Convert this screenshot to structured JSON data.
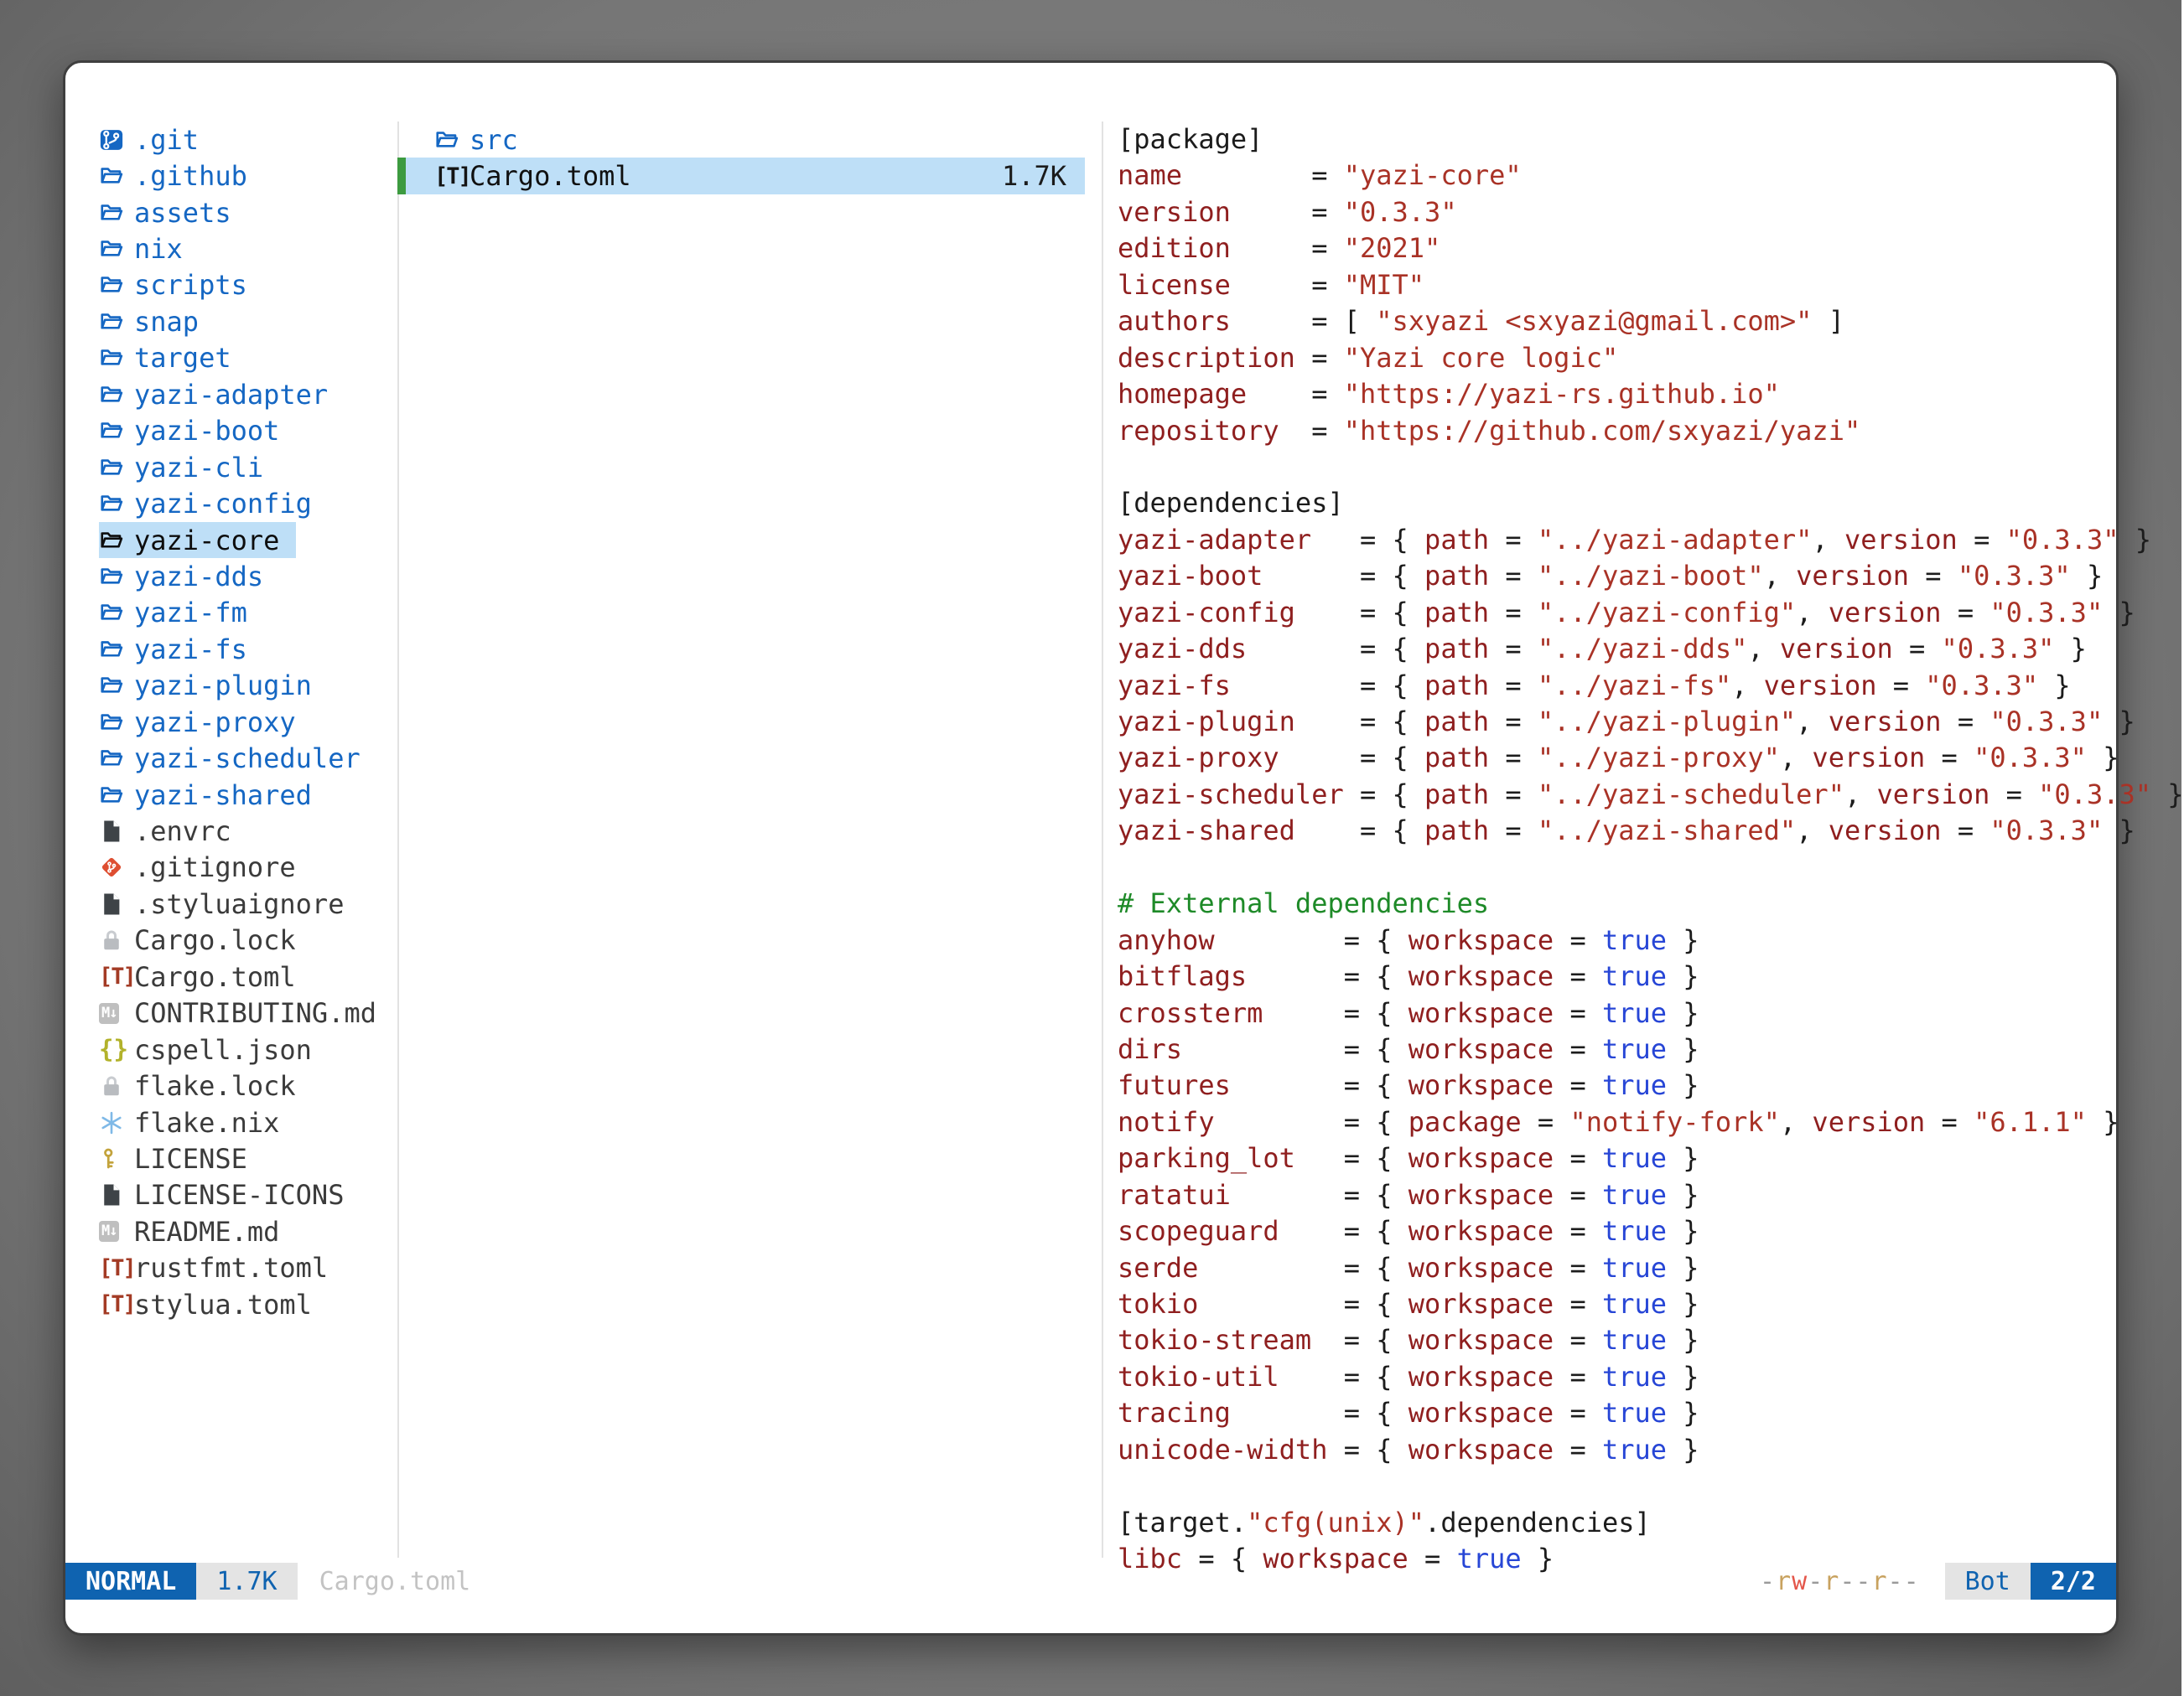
{
  "sidebar": {
    "items": [
      {
        "label": ".git",
        "icon": "git-repo",
        "kind": "folder"
      },
      {
        "label": ".github",
        "icon": "folder",
        "kind": "folder"
      },
      {
        "label": "assets",
        "icon": "folder",
        "kind": "folder"
      },
      {
        "label": "nix",
        "icon": "folder",
        "kind": "folder"
      },
      {
        "label": "scripts",
        "icon": "folder",
        "kind": "folder"
      },
      {
        "label": "snap",
        "icon": "folder",
        "kind": "folder"
      },
      {
        "label": "target",
        "icon": "folder",
        "kind": "folder"
      },
      {
        "label": "yazi-adapter",
        "icon": "folder",
        "kind": "folder"
      },
      {
        "label": "yazi-boot",
        "icon": "folder",
        "kind": "folder"
      },
      {
        "label": "yazi-cli",
        "icon": "folder",
        "kind": "folder"
      },
      {
        "label": "yazi-config",
        "icon": "folder",
        "kind": "folder"
      },
      {
        "label": "yazi-core",
        "icon": "folder",
        "kind": "folder",
        "selected": true
      },
      {
        "label": "yazi-dds",
        "icon": "folder",
        "kind": "folder"
      },
      {
        "label": "yazi-fm",
        "icon": "folder",
        "kind": "folder"
      },
      {
        "label": "yazi-fs",
        "icon": "folder",
        "kind": "folder"
      },
      {
        "label": "yazi-plugin",
        "icon": "folder",
        "kind": "folder"
      },
      {
        "label": "yazi-proxy",
        "icon": "folder",
        "kind": "folder"
      },
      {
        "label": "yazi-scheduler",
        "icon": "folder",
        "kind": "folder"
      },
      {
        "label": "yazi-shared",
        "icon": "folder",
        "kind": "folder"
      },
      {
        "label": ".envrc",
        "icon": "file",
        "kind": "file"
      },
      {
        "label": ".gitignore",
        "icon": "git",
        "kind": "file"
      },
      {
        "label": ".styluaignore",
        "icon": "file",
        "kind": "file"
      },
      {
        "label": "Cargo.lock",
        "icon": "lock",
        "kind": "file"
      },
      {
        "label": "Cargo.toml",
        "icon": "toml",
        "kind": "file"
      },
      {
        "label": "CONTRIBUTING.md",
        "icon": "markdown",
        "kind": "file"
      },
      {
        "label": "cspell.json",
        "icon": "json",
        "kind": "file"
      },
      {
        "label": "flake.lock",
        "icon": "lock",
        "kind": "file"
      },
      {
        "label": "flake.nix",
        "icon": "nix",
        "kind": "file"
      },
      {
        "label": "LICENSE",
        "icon": "key",
        "kind": "file"
      },
      {
        "label": "LICENSE-ICONS",
        "icon": "file",
        "kind": "file"
      },
      {
        "label": "README.md",
        "icon": "markdown",
        "kind": "file"
      },
      {
        "label": "rustfmt.toml",
        "icon": "toml",
        "kind": "file"
      },
      {
        "label": "stylua.toml",
        "icon": "toml",
        "kind": "file"
      }
    ]
  },
  "filelist": {
    "items": [
      {
        "label": "src",
        "icon": "folder",
        "kind": "folder"
      },
      {
        "label": "Cargo.toml",
        "icon": "toml",
        "kind": "file",
        "size": "1.7K",
        "selected": true
      }
    ]
  },
  "preview": {
    "lines": [
      [
        [
          "h",
          "[package]"
        ]
      ],
      [
        [
          "k",
          "name"
        ],
        [
          "p",
          "        = "
        ],
        [
          "s",
          "\"yazi-core\""
        ]
      ],
      [
        [
          "k",
          "version"
        ],
        [
          "p",
          "     = "
        ],
        [
          "s",
          "\"0.3.3\""
        ]
      ],
      [
        [
          "k",
          "edition"
        ],
        [
          "p",
          "     = "
        ],
        [
          "s",
          "\"2021\""
        ]
      ],
      [
        [
          "k",
          "license"
        ],
        [
          "p",
          "     = "
        ],
        [
          "s",
          "\"MIT\""
        ]
      ],
      [
        [
          "k",
          "authors"
        ],
        [
          "p",
          "     = [ "
        ],
        [
          "s",
          "\"sxyazi <sxyazi@gmail.com>\""
        ],
        [
          "p",
          " ]"
        ]
      ],
      [
        [
          "k",
          "description"
        ],
        [
          "p",
          " = "
        ],
        [
          "s",
          "\"Yazi core logic\""
        ]
      ],
      [
        [
          "k",
          "homepage"
        ],
        [
          "p",
          "    = "
        ],
        [
          "s",
          "\"https://yazi-rs.github.io\""
        ]
      ],
      [
        [
          "k",
          "repository"
        ],
        [
          "p",
          "  = "
        ],
        [
          "s",
          "\"https://github.com/sxyazi/yazi\""
        ]
      ],
      [],
      [
        [
          "h",
          "[dependencies]"
        ]
      ],
      [
        [
          "k",
          "yazi-adapter"
        ],
        [
          "p",
          "   = { "
        ],
        [
          "k",
          "path"
        ],
        [
          "p",
          " = "
        ],
        [
          "s",
          "\"../yazi-adapter\""
        ],
        [
          "p",
          ", "
        ],
        [
          "k",
          "version"
        ],
        [
          "p",
          " = "
        ],
        [
          "s",
          "\"0.3.3\""
        ],
        [
          "p",
          " }"
        ]
      ],
      [
        [
          "k",
          "yazi-boot"
        ],
        [
          "p",
          "      = { "
        ],
        [
          "k",
          "path"
        ],
        [
          "p",
          " = "
        ],
        [
          "s",
          "\"../yazi-boot\""
        ],
        [
          "p",
          ", "
        ],
        [
          "k",
          "version"
        ],
        [
          "p",
          " = "
        ],
        [
          "s",
          "\"0.3.3\""
        ],
        [
          "p",
          " }"
        ]
      ],
      [
        [
          "k",
          "yazi-config"
        ],
        [
          "p",
          "    = { "
        ],
        [
          "k",
          "path"
        ],
        [
          "p",
          " = "
        ],
        [
          "s",
          "\"../yazi-config\""
        ],
        [
          "p",
          ", "
        ],
        [
          "k",
          "version"
        ],
        [
          "p",
          " = "
        ],
        [
          "s",
          "\"0.3.3\""
        ],
        [
          "p",
          " }"
        ]
      ],
      [
        [
          "k",
          "yazi-dds"
        ],
        [
          "p",
          "       = { "
        ],
        [
          "k",
          "path"
        ],
        [
          "p",
          " = "
        ],
        [
          "s",
          "\"../yazi-dds\""
        ],
        [
          "p",
          ", "
        ],
        [
          "k",
          "version"
        ],
        [
          "p",
          " = "
        ],
        [
          "s",
          "\"0.3.3\""
        ],
        [
          "p",
          " }"
        ]
      ],
      [
        [
          "k",
          "yazi-fs"
        ],
        [
          "p",
          "        = { "
        ],
        [
          "k",
          "path"
        ],
        [
          "p",
          " = "
        ],
        [
          "s",
          "\"../yazi-fs\""
        ],
        [
          "p",
          ", "
        ],
        [
          "k",
          "version"
        ],
        [
          "p",
          " = "
        ],
        [
          "s",
          "\"0.3.3\""
        ],
        [
          "p",
          " }"
        ]
      ],
      [
        [
          "k",
          "yazi-plugin"
        ],
        [
          "p",
          "    = { "
        ],
        [
          "k",
          "path"
        ],
        [
          "p",
          " = "
        ],
        [
          "s",
          "\"../yazi-plugin\""
        ],
        [
          "p",
          ", "
        ],
        [
          "k",
          "version"
        ],
        [
          "p",
          " = "
        ],
        [
          "s",
          "\"0.3.3\""
        ],
        [
          "p",
          " }"
        ]
      ],
      [
        [
          "k",
          "yazi-proxy"
        ],
        [
          "p",
          "     = { "
        ],
        [
          "k",
          "path"
        ],
        [
          "p",
          " = "
        ],
        [
          "s",
          "\"../yazi-proxy\""
        ],
        [
          "p",
          ", "
        ],
        [
          "k",
          "version"
        ],
        [
          "p",
          " = "
        ],
        [
          "s",
          "\"0.3.3\""
        ],
        [
          "p",
          " }"
        ]
      ],
      [
        [
          "k",
          "yazi-scheduler"
        ],
        [
          "p",
          " = { "
        ],
        [
          "k",
          "path"
        ],
        [
          "p",
          " = "
        ],
        [
          "s",
          "\"../yazi-scheduler\""
        ],
        [
          "p",
          ", "
        ],
        [
          "k",
          "version"
        ],
        [
          "p",
          " = "
        ],
        [
          "s",
          "\"0.3.3\""
        ],
        [
          "p",
          " }"
        ]
      ],
      [
        [
          "k",
          "yazi-shared"
        ],
        [
          "p",
          "    = { "
        ],
        [
          "k",
          "path"
        ],
        [
          "p",
          " = "
        ],
        [
          "s",
          "\"../yazi-shared\""
        ],
        [
          "p",
          ", "
        ],
        [
          "k",
          "version"
        ],
        [
          "p",
          " = "
        ],
        [
          "s",
          "\"0.3.3\""
        ],
        [
          "p",
          " }"
        ]
      ],
      [],
      [
        [
          "c",
          "# External dependencies"
        ]
      ],
      [
        [
          "k",
          "anyhow"
        ],
        [
          "p",
          "        = { "
        ],
        [
          "k",
          "workspace"
        ],
        [
          "p",
          " = "
        ],
        [
          "b",
          "true"
        ],
        [
          "p",
          " }"
        ]
      ],
      [
        [
          "k",
          "bitflags"
        ],
        [
          "p",
          "      = { "
        ],
        [
          "k",
          "workspace"
        ],
        [
          "p",
          " = "
        ],
        [
          "b",
          "true"
        ],
        [
          "p",
          " }"
        ]
      ],
      [
        [
          "k",
          "crossterm"
        ],
        [
          "p",
          "     = { "
        ],
        [
          "k",
          "workspace"
        ],
        [
          "p",
          " = "
        ],
        [
          "b",
          "true"
        ],
        [
          "p",
          " }"
        ]
      ],
      [
        [
          "k",
          "dirs"
        ],
        [
          "p",
          "          = { "
        ],
        [
          "k",
          "workspace"
        ],
        [
          "p",
          " = "
        ],
        [
          "b",
          "true"
        ],
        [
          "p",
          " }"
        ]
      ],
      [
        [
          "k",
          "futures"
        ],
        [
          "p",
          "       = { "
        ],
        [
          "k",
          "workspace"
        ],
        [
          "p",
          " = "
        ],
        [
          "b",
          "true"
        ],
        [
          "p",
          " }"
        ]
      ],
      [
        [
          "k",
          "notify"
        ],
        [
          "p",
          "        = { "
        ],
        [
          "k",
          "package"
        ],
        [
          "p",
          " = "
        ],
        [
          "s",
          "\"notify-fork\""
        ],
        [
          "p",
          ", "
        ],
        [
          "k",
          "version"
        ],
        [
          "p",
          " = "
        ],
        [
          "s",
          "\"6.1.1\""
        ],
        [
          "p",
          " }"
        ]
      ],
      [
        [
          "k",
          "parking_lot"
        ],
        [
          "p",
          "   = { "
        ],
        [
          "k",
          "workspace"
        ],
        [
          "p",
          " = "
        ],
        [
          "b",
          "true"
        ],
        [
          "p",
          " }"
        ]
      ],
      [
        [
          "k",
          "ratatui"
        ],
        [
          "p",
          "       = { "
        ],
        [
          "k",
          "workspace"
        ],
        [
          "p",
          " = "
        ],
        [
          "b",
          "true"
        ],
        [
          "p",
          " }"
        ]
      ],
      [
        [
          "k",
          "scopeguard"
        ],
        [
          "p",
          "    = { "
        ],
        [
          "k",
          "workspace"
        ],
        [
          "p",
          " = "
        ],
        [
          "b",
          "true"
        ],
        [
          "p",
          " }"
        ]
      ],
      [
        [
          "k",
          "serde"
        ],
        [
          "p",
          "         = { "
        ],
        [
          "k",
          "workspace"
        ],
        [
          "p",
          " = "
        ],
        [
          "b",
          "true"
        ],
        [
          "p",
          " }"
        ]
      ],
      [
        [
          "k",
          "tokio"
        ],
        [
          "p",
          "         = { "
        ],
        [
          "k",
          "workspace"
        ],
        [
          "p",
          " = "
        ],
        [
          "b",
          "true"
        ],
        [
          "p",
          " }"
        ]
      ],
      [
        [
          "k",
          "tokio-stream"
        ],
        [
          "p",
          "  = { "
        ],
        [
          "k",
          "workspace"
        ],
        [
          "p",
          " = "
        ],
        [
          "b",
          "true"
        ],
        [
          "p",
          " }"
        ]
      ],
      [
        [
          "k",
          "tokio-util"
        ],
        [
          "p",
          "    = { "
        ],
        [
          "k",
          "workspace"
        ],
        [
          "p",
          " = "
        ],
        [
          "b",
          "true"
        ],
        [
          "p",
          " }"
        ]
      ],
      [
        [
          "k",
          "tracing"
        ],
        [
          "p",
          "       = { "
        ],
        [
          "k",
          "workspace"
        ],
        [
          "p",
          " = "
        ],
        [
          "b",
          "true"
        ],
        [
          "p",
          " }"
        ]
      ],
      [
        [
          "k",
          "unicode-width"
        ],
        [
          "p",
          " = { "
        ],
        [
          "k",
          "workspace"
        ],
        [
          "p",
          " = "
        ],
        [
          "b",
          "true"
        ],
        [
          "p",
          " }"
        ]
      ],
      [],
      [
        [
          "p",
          "[target."
        ],
        [
          "s",
          "\"cfg(unix)\""
        ],
        [
          "p",
          ".dependencies]"
        ]
      ],
      [
        [
          "k",
          "libc"
        ],
        [
          "p",
          " = { "
        ],
        [
          "k",
          "workspace"
        ],
        [
          "p",
          " = "
        ],
        [
          "b",
          "true"
        ],
        [
          "p",
          " }"
        ]
      ]
    ]
  },
  "statusbar": {
    "mode": "NORMAL",
    "size": "1.7K",
    "filename": "Cargo.toml",
    "permissions": "-rw-r--r--",
    "position": "Bot",
    "page": "2/2"
  },
  "icons": {
    "toml_glyph": "[T]",
    "markdown_glyph": "M↓",
    "json_glyph": "{}"
  },
  "colors": {
    "accent_blue": "#0f63b0",
    "folder_blue": "#1567c3",
    "selection_bg": "#bedff7",
    "selection_marker_green": "#3d9b40",
    "toml_key": "#8f1f1f",
    "toml_string": "#a93226",
    "toml_bool": "#2746d6",
    "comment_green": "#1e8a28",
    "gitignore_orange": "#de4e31"
  }
}
